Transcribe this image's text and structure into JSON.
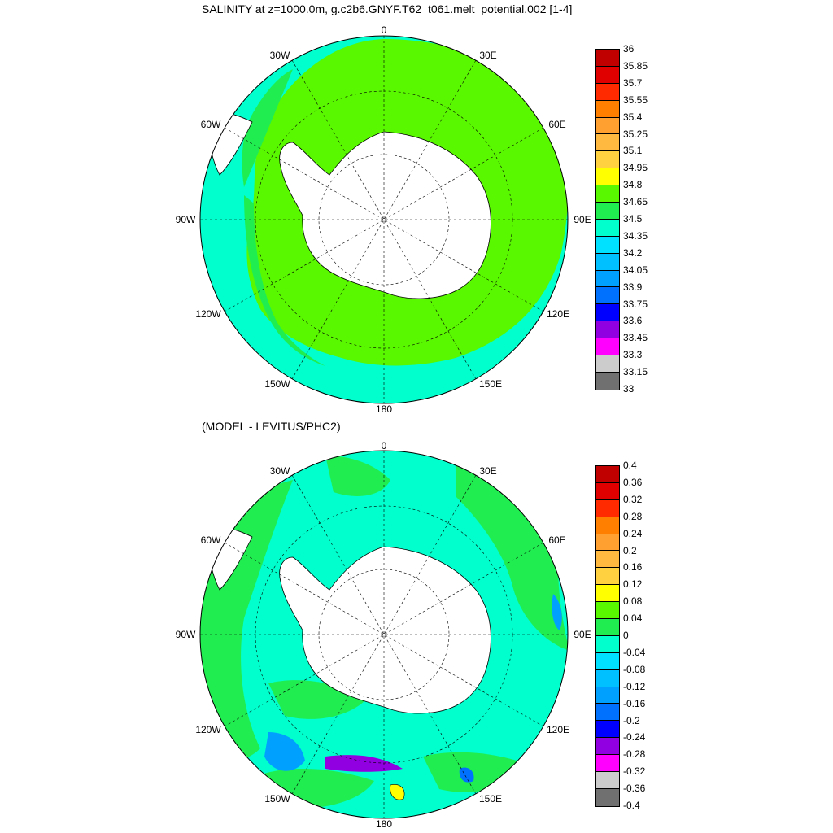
{
  "maps": [
    {
      "title": "SALINITY at z=1000.0m, g.c2b6.GNYF.T62_t061.melt_potential.002 [1-4]",
      "lon_labels": [
        "0",
        "30E",
        "60E",
        "90E",
        "120E",
        "150E",
        "180",
        "150W",
        "120W",
        "90W",
        "60W",
        "30W"
      ],
      "colorbar": {
        "labels": [
          "36",
          "35.85",
          "35.7",
          "35.55",
          "35.4",
          "35.25",
          "35.1",
          "34.95",
          "34.8",
          "34.65",
          "34.5",
          "34.35",
          "34.2",
          "34.05",
          "33.9",
          "33.75",
          "33.6",
          "33.45",
          "33.3",
          "33.15",
          "33"
        ],
        "colors": [
          "#c00000",
          "#e00000",
          "#ff2a00",
          "#ff8000",
          "#ffa030",
          "#ffb840",
          "#ffd040",
          "#ffff00",
          "#59f700",
          "#20ee50",
          "#00ffcc",
          "#00e0ff",
          "#00c0ff",
          "#00a0ff",
          "#0070ff",
          "#0000ff",
          "#9000e0",
          "#ff00ff",
          "#cccccc",
          "#707070"
        ]
      }
    },
    {
      "title": "(MODEL - LEVITUS/PHC2)",
      "lon_labels": [
        "0",
        "30E",
        "60E",
        "90E",
        "120E",
        "150E",
        "180",
        "150W",
        "120W",
        "90W",
        "60W",
        "30W"
      ],
      "colorbar": {
        "labels": [
          "0.4",
          "0.36",
          "0.32",
          "0.28",
          "0.24",
          "0.2",
          "0.16",
          "0.12",
          "0.08",
          "0.04",
          "0",
          "-0.04",
          "-0.08",
          "-0.12",
          "-0.16",
          "-0.2",
          "-0.24",
          "-0.28",
          "-0.32",
          "-0.36",
          "-0.4"
        ],
        "colors": [
          "#c00000",
          "#e00000",
          "#ff2a00",
          "#ff8000",
          "#ffa030",
          "#ffb840",
          "#ffd040",
          "#ffff00",
          "#59f700",
          "#20ee50",
          "#00ffcc",
          "#00e0ff",
          "#00c0ff",
          "#00a0ff",
          "#0070ff",
          "#0000ff",
          "#9000e0",
          "#ff00ff",
          "#cccccc",
          "#707070"
        ]
      }
    }
  ]
}
